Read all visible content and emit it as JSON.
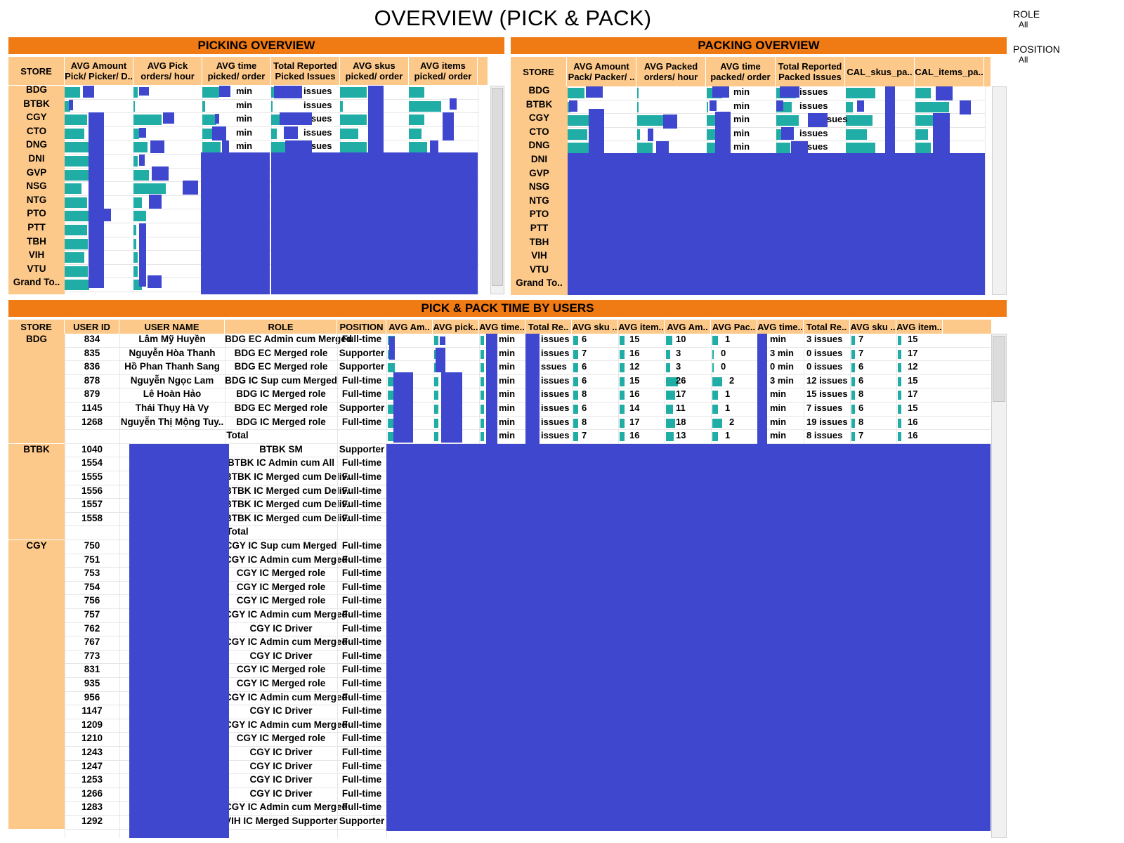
{
  "title": "OVERVIEW (PICK & PACK)",
  "filters": {
    "role": {
      "label": "ROLE",
      "value": "All"
    },
    "position": {
      "label": "POSITION",
      "value": "All"
    }
  },
  "picking": {
    "banner": "PICKING OVERVIEW",
    "headers": [
      "STORE",
      "AVG Amount\nPick/ Picker/ D..",
      "AVG Pick\norders/ hour",
      "AVG time\npicked/ order",
      "Total Reported\nPicked Issues",
      "AVG skus\npicked/ order",
      "AVG items\npicked/ order"
    ],
    "unit_min": "min",
    "unit_issues": "issues"
  },
  "packing": {
    "banner": "PACKING OVERVIEW",
    "headers": [
      "STORE",
      "AVG Amount\nPack/ Packer/ ..",
      "AVG Packed\norders/ hour",
      "AVG time\npacked/ order",
      "Total Reported\nPacked Issues",
      "CAL_skus_pa..",
      "CAL_items_pa.."
    ],
    "unit_min": "min",
    "unit_issues": "issues"
  },
  "stores": [
    "BDG",
    "BTBK",
    "CGY",
    "CTO",
    "DNG",
    "DNI",
    "GVP",
    "NSG",
    "NTG",
    "PTO",
    "PTT",
    "TBH",
    "VIH",
    "VTU",
    "Grand To.."
  ],
  "users": {
    "banner": "PICK & PACK TIME BY USERS",
    "headers": [
      "STORE",
      "USER ID",
      "USER NAME",
      "ROLE",
      "POSITION",
      "AVG Am..",
      "AVG pick..",
      "AVG time..",
      "Total Re..",
      "AVG sku ..",
      "AVG item..",
      "AVG Am..",
      "AVG Pac..",
      "AVG time..",
      "Total Re..",
      "AVG sku ..",
      "AVG item.."
    ],
    "groups": [
      {
        "store": "BDG",
        "rows": [
          {
            "id": "834",
            "name": "Lâm Mỹ Huyền",
            "role": "BDG EC Admin cum Merged",
            "position": "Full-time",
            "pick_time": "min",
            "pick_issues": "issues",
            "pick_sku": "6",
            "pick_item": "15",
            "pack_amt": "10",
            "pack_oph": "1",
            "pack_time": "min",
            "pack_issues": "3 issues",
            "pack_sku": "7",
            "pack_item": "15"
          },
          {
            "id": "835",
            "name": "Nguyễn Hòa Thanh",
            "role": "BDG EC Merged role",
            "position": "Supporter",
            "pick_time": "min",
            "pick_issues": "issues",
            "pick_sku": "7",
            "pick_item": "16",
            "pack_amt": "3",
            "pack_oph": "0",
            "pack_time": "3 min",
            "pack_issues": "0 issues",
            "pack_sku": "7",
            "pack_item": "17"
          },
          {
            "id": "836",
            "name": "Hồ Phan Thanh Sang",
            "role": "BDG EC Merged role",
            "position": "Supporter",
            "pick_time": "min",
            "pick_issues": "ssues",
            "pick_sku": "6",
            "pick_item": "12",
            "pack_amt": "3",
            "pack_oph": "0",
            "pack_time": "0 min",
            "pack_issues": "0 issues",
            "pack_sku": "6",
            "pack_item": "12"
          },
          {
            "id": "878",
            "name": "Nguyễn Ngọc Lam",
            "role": "BDG IC Sup cum Merged",
            "position": "Full-time",
            "pick_time": "min",
            "pick_issues": "issues",
            "pick_sku": "6",
            "pick_item": "15",
            "pack_amt": "26",
            "pack_oph": "2",
            "pack_time": "3 min",
            "pack_issues": "12 issues",
            "pack_sku": "6",
            "pack_item": "15"
          },
          {
            "id": "879",
            "name": "Lê Hoàn Hảo",
            "role": "BDG IC Merged role",
            "position": "Full-time",
            "pick_time": "min",
            "pick_issues": "issues",
            "pick_sku": "8",
            "pick_item": "16",
            "pack_amt": "17",
            "pack_oph": "1",
            "pack_time": "min",
            "pack_issues": "15 issues",
            "pack_sku": "8",
            "pack_item": "17"
          },
          {
            "id": "1145",
            "name": "Thái Thụy Hà Vy",
            "role": "BDG EC Merged role",
            "position": "Supporter",
            "pick_time": "min",
            "pick_issues": "issues",
            "pick_sku": "6",
            "pick_item": "14",
            "pack_amt": "11",
            "pack_oph": "1",
            "pack_time": "min",
            "pack_issues": "7 issues",
            "pack_sku": "6",
            "pack_item": "15"
          },
          {
            "id": "1268",
            "name": "Nguyễn Thị Mộng Tuy..",
            "role": "BDG IC Merged role",
            "position": "Full-time",
            "pick_time": "min",
            "pick_issues": "issues",
            "pick_sku": "8",
            "pick_item": "17",
            "pack_amt": "18",
            "pack_oph": "2",
            "pack_time": "min",
            "pack_issues": "19 issues",
            "pack_sku": "8",
            "pack_item": "16"
          },
          {
            "id": "",
            "name": "",
            "role": "Total",
            "position": "",
            "pick_time": "min",
            "pick_issues": "issues",
            "pick_sku": "7",
            "pick_item": "16",
            "pack_amt": "13",
            "pack_oph": "1",
            "pack_time": "min",
            "pack_issues": "8 issues",
            "pack_sku": "7",
            "pack_item": "16"
          }
        ]
      },
      {
        "store": "BTBK",
        "rows": [
          {
            "id": "1040",
            "role": "BTBK SM",
            "position": "Supporter"
          },
          {
            "id": "1554",
            "role": "BTBK IC Admin cum All",
            "position": "Full-time"
          },
          {
            "id": "1555",
            "role": "BTBK IC Merged cum Deliv..",
            "position": "Full-time"
          },
          {
            "id": "1556",
            "role": "BTBK IC Merged cum Deliv..",
            "position": "Full-time"
          },
          {
            "id": "1557",
            "role": "BTBK IC Merged cum Deliv..",
            "position": "Full-time"
          },
          {
            "id": "1558",
            "role": "BTBK IC Merged cum Deliv..",
            "position": "Full-time"
          },
          {
            "id": "",
            "role": "Total",
            "position": ""
          }
        ]
      },
      {
        "store": "CGY",
        "rows": [
          {
            "id": "750",
            "role": "CGY IC Sup cum Merged",
            "position": "Full-time"
          },
          {
            "id": "751",
            "role": "CGY IC Admin cum Merged",
            "position": "Full-time"
          },
          {
            "id": "753",
            "role": "CGY IC Merged role",
            "position": "Full-time"
          },
          {
            "id": "754",
            "role": "CGY IC Merged role",
            "position": "Full-time"
          },
          {
            "id": "756",
            "role": "CGY IC Merged role",
            "position": "Full-time"
          },
          {
            "id": "757",
            "role": "CGY IC Admin cum Merged",
            "position": "Full-time"
          },
          {
            "id": "762",
            "role": "CGY IC Driver",
            "position": "Full-time"
          },
          {
            "id": "767",
            "role": "CGY IC Admin cum Merged",
            "position": "Full-time"
          },
          {
            "id": "773",
            "role": "CGY IC Driver",
            "position": "Full-time"
          },
          {
            "id": "831",
            "role": "CGY IC Merged role",
            "position": "Full-time"
          },
          {
            "id": "935",
            "role": "CGY IC Merged role",
            "position": "Full-time"
          },
          {
            "id": "956",
            "role": "CGY IC Admin cum Merged",
            "position": "Full-time"
          },
          {
            "id": "1147",
            "role": "CGY IC Driver",
            "position": "Full-time"
          },
          {
            "id": "1209",
            "role": "CGY IC Admin cum Merged",
            "position": "Full-time"
          },
          {
            "id": "1210",
            "role": "CGY IC Merged role",
            "position": "Full-time"
          },
          {
            "id": "1243",
            "role": "CGY IC Driver",
            "position": "Full-time"
          },
          {
            "id": "1247",
            "role": "CGY IC Driver",
            "position": "Full-time"
          },
          {
            "id": "1253",
            "role": "CGY IC Driver",
            "position": "Full-time"
          },
          {
            "id": "1266",
            "role": "CGY IC Driver",
            "position": "Full-time"
          },
          {
            "id": "1283",
            "role": "CGY IC Admin cum Merged",
            "position": "Full-time"
          },
          {
            "id": "1292",
            "role": "VIH IC Merged Supporter",
            "position": "Supporter"
          }
        ]
      }
    ]
  },
  "colors": {
    "banner": "#f07a14",
    "header": "#fdc98a",
    "bar": "#1fada6",
    "redaction": "#3f47cf"
  }
}
